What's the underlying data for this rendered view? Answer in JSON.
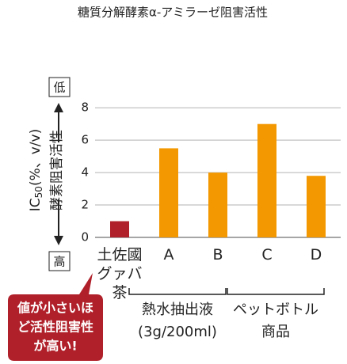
{
  "chart_data": {
    "type": "bar",
    "title": "糖質分解酵素α-アミラーゼ阻害活性",
    "y_label": {
      "main": "IC",
      "sub": "50",
      "rest": "(%、v/v)"
    },
    "y_label2": "酵素阻害活性",
    "y_low": "低",
    "y_high": "高",
    "categories": [
      "土佐國グァバ茶",
      "A",
      "B",
      "C",
      "D"
    ],
    "values": [
      1.0,
      5.5,
      4.0,
      7.0,
      3.8
    ],
    "colors": [
      "#b0202a",
      "#f39800",
      "#f39800",
      "#f39800",
      "#f39800"
    ],
    "ylim": [
      0,
      8.5
    ],
    "yticks": [
      0,
      2,
      4,
      6,
      8
    ],
    "grid": true,
    "groups": [
      {
        "lines": [
          "熱水抽出液",
          "(3g/200ml)"
        ],
        "from": 1,
        "to": 2
      },
      {
        "lines": [
          "ペットボトル",
          "商品"
        ],
        "from": 3,
        "to": 4
      }
    ],
    "callout": [
      "値が小さいほ",
      "ど活性阻害性",
      "が高い!"
    ]
  }
}
